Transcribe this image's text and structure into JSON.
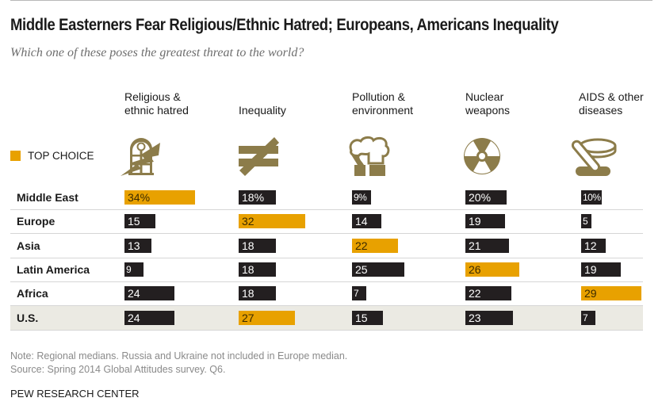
{
  "header": {
    "title": "Middle Easterners Fear Religious/Ethnic Hatred; Europeans, Americans Inequality",
    "subtitle": "Which one of these poses the greatest threat to the world?"
  },
  "legend": {
    "label": "TOP CHOICE",
    "color": "#e8a100"
  },
  "colors": {
    "top_choice": "#e8a100",
    "other": "#231f20",
    "icon": "#8c7c4a",
    "highlight_row": "#ebeae3"
  },
  "columns": [
    {
      "line1": "Religious &",
      "line2": "ethnic hatred",
      "icon": "church-window-lightning-icon"
    },
    {
      "line1": "",
      "line2": "Inequality",
      "icon": "not-equal-icon"
    },
    {
      "line1": "Pollution &",
      "line2": "environment",
      "icon": "smokestack-icon"
    },
    {
      "line1": "Nuclear",
      "line2": "weapons",
      "icon": "radiation-icon"
    },
    {
      "line1": "AIDS & other",
      "line2": "diseases",
      "icon": "bandage-icon"
    }
  ],
  "chart_data": {
    "type": "table",
    "title": "Middle Easterners Fear Religious/Ethnic Hatred; Europeans, Americans Inequality",
    "subtitle": "Which one of these poses the greatest threat to the world?",
    "unit": "%",
    "categories": [
      "Religious & ethnic hatred",
      "Inequality",
      "Pollution & environment",
      "Nuclear weapons",
      "AIDS & other diseases"
    ],
    "rows": [
      {
        "region": "Middle East",
        "values": [
          34,
          18,
          9,
          20,
          10
        ],
        "labels": [
          "34%",
          "18%",
          "9%",
          "20%",
          "10%"
        ],
        "top_choice": 0,
        "highlight": false
      },
      {
        "region": "Europe",
        "values": [
          15,
          32,
          14,
          19,
          5
        ],
        "labels": [
          "15",
          "32",
          "14",
          "19",
          "5"
        ],
        "top_choice": 1,
        "highlight": false
      },
      {
        "region": "Asia",
        "values": [
          13,
          18,
          22,
          21,
          12
        ],
        "labels": [
          "13",
          "18",
          "22",
          "21",
          "12"
        ],
        "top_choice": 2,
        "highlight": false
      },
      {
        "region": "Latin America",
        "values": [
          9,
          18,
          25,
          26,
          19
        ],
        "labels": [
          "9",
          "18",
          "25",
          "26",
          "19"
        ],
        "top_choice": 3,
        "highlight": false
      },
      {
        "region": "Africa",
        "values": [
          24,
          18,
          7,
          22,
          29
        ],
        "labels": [
          "24",
          "18",
          "7",
          "22",
          "29"
        ],
        "top_choice": 4,
        "highlight": false
      },
      {
        "region": "U.S.",
        "values": [
          24,
          27,
          15,
          23,
          7
        ],
        "labels": [
          "24",
          "27",
          "15",
          "23",
          "7"
        ],
        "top_choice": 1,
        "highlight": true
      }
    ],
    "legend": [
      {
        "name": "TOP CHOICE",
        "color": "#e8a100"
      }
    ]
  },
  "footer": {
    "note": "Note: Regional medians. Russia and Ukraine not included in Europe median.",
    "source": "Source: Spring 2014 Global Attitudes survey. Q6.",
    "brand": "PEW RESEARCH CENTER"
  }
}
